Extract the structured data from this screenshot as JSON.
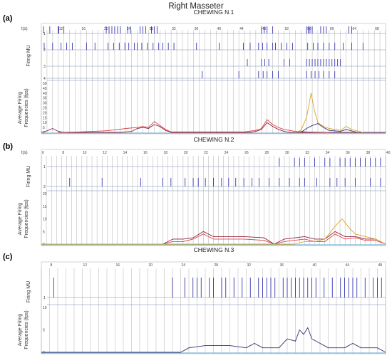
{
  "figure": {
    "title": "Right Masseter",
    "x_label": "t(s)",
    "firing_label": "Firing MU",
    "freq_label": "Average Firing Frequencies (fps)",
    "colors": {
      "spike": "#1f1fa8",
      "grid": "#a8a8a8",
      "baseline": "#7bb9d8",
      "series": [
        "#8b2040",
        "#e04040",
        "#d9a520",
        "#303070"
      ]
    }
  },
  "chart_data": [
    {
      "type": "line",
      "label": "(a)",
      "title": "CHEWING N.1",
      "xlabel": "t(s)",
      "ylabel": "Average Firing Frequencies (fps)",
      "x_ticks": [
        12,
        16,
        20,
        24,
        28,
        32,
        36,
        40,
        44,
        48,
        52,
        56,
        60,
        64,
        68
      ],
      "xlim": [
        9,
        70
      ],
      "ylim": [
        0,
        50
      ],
      "y_ticks": [
        0,
        5,
        10,
        15,
        20,
        25,
        30,
        35,
        40,
        45,
        50
      ],
      "grid_step": 1,
      "channels": [
        {
          "label": "1",
          "spikes": [
            9.4,
            10.5,
            12.0,
            12.1,
            13.0,
            20.5,
            21.0,
            21.5,
            22.0,
            22.5,
            23.0,
            24.3,
            24.8,
            26.5,
            27.0,
            27.5,
            28.5,
            29.0,
            29.5,
            48.0,
            48.5,
            49.0,
            50.0,
            56.0,
            56.3,
            56.6,
            57.0,
            58.5,
            59.0,
            59.5,
            63.5,
            64.0
          ]
        },
        {
          "label": "2",
          "spikes": [
            9.5,
            11.0,
            12.5,
            13.5,
            14.5,
            17.0,
            18.5,
            20.8,
            21.8,
            22.8,
            23.8,
            24.5,
            25.5,
            26.0,
            26.8,
            27.8,
            28.8,
            29.8,
            30.5,
            31.5,
            32.5,
            36.5,
            40.5,
            44.8,
            46.0,
            47.5,
            48.2,
            49.0,
            50.0,
            50.5,
            51.5,
            52.5,
            53.5,
            56.2,
            57.2,
            58.0,
            59.0,
            60.0,
            61.0,
            62.5,
            64.0,
            66.0
          ]
        },
        {
          "label": "3",
          "spikes": [
            45.5,
            48.0,
            48.6,
            49.3,
            52.0,
            53.0,
            56.0,
            56.5,
            57.0,
            57.5,
            58.0,
            58.5,
            59.0,
            59.5,
            60.0,
            60.5,
            61.0,
            61.5,
            62.0
          ]
        },
        {
          "label": "4",
          "spikes": [
            37.5,
            44.0,
            47.5,
            48.3,
            49.0,
            50.0,
            51.0,
            56.0,
            56.8,
            57.5,
            58.2,
            59.0,
            60.0,
            61.0
          ]
        }
      ],
      "series": [
        {
          "values": [
            [
              9,
              0
            ],
            [
              10,
              1.5
            ],
            [
              11,
              4
            ],
            [
              12,
              1
            ],
            [
              13,
              0
            ],
            [
              23,
              0
            ],
            [
              25,
              1
            ],
            [
              26,
              4
            ],
            [
              27,
              5
            ],
            [
              28,
              4
            ],
            [
              29,
              8
            ],
            [
              30,
              6
            ],
            [
              31,
              2
            ],
            [
              32,
              0
            ],
            [
              46,
              0
            ],
            [
              47,
              1
            ],
            [
              48,
              3
            ],
            [
              49,
              10
            ],
            [
              50,
              6
            ],
            [
              51,
              3
            ],
            [
              52,
              1
            ],
            [
              53,
              0
            ],
            [
              70,
              0
            ]
          ]
        },
        {
          "values": [
            [
              12,
              0
            ],
            [
              16,
              0.5
            ],
            [
              20,
              1.5
            ],
            [
              22,
              2.5
            ],
            [
              24,
              4
            ],
            [
              26,
              5
            ],
            [
              27,
              6
            ],
            [
              28,
              5
            ],
            [
              29,
              11
            ],
            [
              30,
              7
            ],
            [
              31,
              3
            ],
            [
              32,
              0.5
            ],
            [
              45,
              0.5
            ],
            [
              47,
              2
            ],
            [
              48,
              4
            ],
            [
              49,
              13
            ],
            [
              50,
              8
            ],
            [
              51,
              5
            ],
            [
              52,
              3
            ],
            [
              54,
              1
            ],
            [
              56,
              0.5
            ],
            [
              60,
              0
            ]
          ]
        },
        {
          "values": [
            [
              54,
              0
            ],
            [
              55,
              2
            ],
            [
              56,
              15
            ],
            [
              56.8,
              40
            ],
            [
              57.4,
              22
            ],
            [
              58,
              10
            ],
            [
              59,
              6
            ],
            [
              60,
              4
            ],
            [
              62,
              2
            ],
            [
              63,
              6
            ],
            [
              64,
              3
            ],
            [
              66,
              0
            ]
          ]
        },
        {
          "values": [
            [
              55,
              0
            ],
            [
              56,
              4
            ],
            [
              57,
              7
            ],
            [
              58,
              9
            ],
            [
              59,
              5
            ],
            [
              60,
              2
            ],
            [
              62,
              1
            ],
            [
              63,
              3
            ],
            [
              65,
              0
            ]
          ]
        }
      ]
    },
    {
      "type": "line",
      "label": "(b)",
      "title": "CHEWING N.2",
      "xlabel": "t(s)",
      "ylabel": "Average Firing Frequencies (fps)",
      "x_ticks": [
        6,
        8,
        10,
        12,
        14,
        16,
        18,
        20,
        22,
        24,
        26,
        28,
        30,
        32,
        34,
        36,
        38,
        40
      ],
      "xlim": [
        6,
        40
      ],
      "ylim": [
        0,
        20
      ],
      "y_ticks": [
        0,
        5,
        10,
        15,
        20
      ],
      "grid_step": 0.5,
      "channels": [
        {
          "label": "1",
          "spikes": [
            29.5,
            31.0,
            31.5,
            32.0,
            33.0,
            34.0,
            34.5,
            35.5,
            36.0,
            36.5,
            37.0,
            37.5,
            38.0,
            38.5,
            39.0,
            39.5
          ]
        },
        {
          "label": "2",
          "spikes": [
            8.8,
            12.0,
            15.8,
            18.0,
            18.8,
            20.2,
            21.0,
            21.5,
            22.2,
            23.0,
            23.8,
            24.5,
            25.2,
            26.0,
            26.8,
            27.5,
            28.5,
            29.5,
            30.5,
            31.5,
            32.0,
            33.2,
            34.5,
            35.2,
            36.0,
            37.0,
            38.5,
            39.5
          ]
        }
      ],
      "series": [
        {
          "values": [
            [
              6,
              0
            ],
            [
              18,
              0
            ],
            [
              19,
              2
            ],
            [
              20,
              2
            ],
            [
              21,
              2.5
            ],
            [
              22,
              5
            ],
            [
              23,
              3
            ],
            [
              26,
              3
            ],
            [
              28,
              2.5
            ],
            [
              29,
              0
            ],
            [
              30,
              2
            ],
            [
              32,
              3
            ],
            [
              33,
              2
            ],
            [
              34,
              2
            ],
            [
              35,
              5
            ],
            [
              36,
              3
            ],
            [
              37,
              3
            ],
            [
              38,
              2
            ],
            [
              39,
              2
            ],
            [
              40,
              0
            ]
          ]
        },
        {
          "values": [
            [
              6,
              0
            ],
            [
              18,
              0
            ],
            [
              19,
              1
            ],
            [
              20,
              1
            ],
            [
              21,
              2
            ],
            [
              22,
              4
            ],
            [
              23,
              2
            ],
            [
              26,
              2
            ],
            [
              28,
              1.5
            ],
            [
              29,
              0
            ],
            [
              30,
              1
            ],
            [
              32,
              2
            ],
            [
              33,
              1
            ],
            [
              34,
              1
            ],
            [
              35,
              4
            ],
            [
              36,
              2
            ],
            [
              37,
              2.5
            ],
            [
              38,
              1.5
            ],
            [
              39,
              1.5
            ],
            [
              40,
              0
            ]
          ]
        },
        {
          "values": [
            [
              6,
              0
            ],
            [
              31,
              0
            ],
            [
              32,
              1
            ],
            [
              33,
              1
            ],
            [
              34,
              2
            ],
            [
              35,
              7
            ],
            [
              35.7,
              10
            ],
            [
              36.5,
              6
            ],
            [
              37,
              4
            ],
            [
              38,
              3
            ],
            [
              39,
              2
            ],
            [
              40,
              0
            ]
          ]
        }
      ]
    },
    {
      "type": "line",
      "label": "(c)",
      "title": "CHEWING N.3",
      "xlabel": "",
      "ylabel": "Average Firing Frequencies (fps)",
      "x_ticks": [
        8,
        12,
        16,
        20,
        24,
        28,
        32,
        36,
        40,
        44,
        48
      ],
      "xlim": [
        7,
        49
      ],
      "ylim": [
        0,
        10
      ],
      "y_ticks": [
        0,
        5,
        10
      ],
      "grid_step": 1,
      "channels": [
        {
          "label": "1",
          "spikes": [
            8.5,
            23.0,
            24.5,
            25.5,
            26.0,
            26.5,
            27.5,
            28.0,
            29.0,
            29.5,
            30.5,
            31.5,
            32.5,
            33.5,
            34.0,
            34.5,
            35.0,
            35.5,
            36.5,
            37.0,
            37.5,
            38.0,
            38.5,
            39.0,
            39.5,
            40.0,
            40.5,
            41.5,
            42.5,
            43.5,
            44.0,
            44.5,
            45.0,
            45.5,
            46.5,
            47.5,
            48.0,
            48.5
          ]
        }
      ],
      "series": [
        {
          "values": [
            [
              7,
              0
            ],
            [
              24,
              0
            ],
            [
              25,
              1
            ],
            [
              27,
              1.5
            ],
            [
              30,
              1.5
            ],
            [
              32,
              1
            ],
            [
              33,
              2
            ],
            [
              34,
              1
            ],
            [
              36,
              1
            ],
            [
              37,
              3
            ],
            [
              38,
              2.5
            ],
            [
              38.5,
              5
            ],
            [
              39,
              4
            ],
            [
              39.5,
              5.5
            ],
            [
              40,
              3
            ],
            [
              41,
              2
            ],
            [
              42,
              1
            ],
            [
              44,
              1
            ],
            [
              45,
              2
            ],
            [
              46,
              1
            ],
            [
              48,
              1
            ],
            [
              49,
              0
            ]
          ]
        }
      ]
    }
  ]
}
